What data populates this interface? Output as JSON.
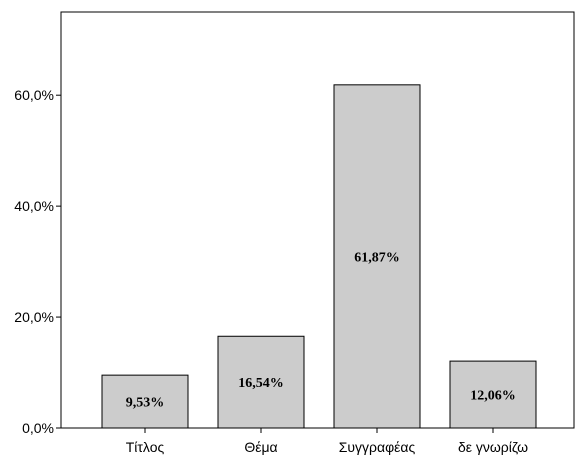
{
  "chart_data": {
    "type": "bar",
    "categories": [
      "Τίτλος",
      "Θέμα",
      "Συγγραφέας",
      "δε γνωρίζω"
    ],
    "values": [
      9.53,
      16.54,
      61.87,
      12.06
    ],
    "data_labels": [
      "9,53%",
      "16,54%",
      "61,87%",
      "12,06%"
    ],
    "title": "",
    "xlabel": "",
    "ylabel": "",
    "ylim": [
      0,
      75
    ],
    "yticks": [
      0,
      20,
      40,
      60
    ],
    "ytick_labels": [
      "0,0%",
      "20,0%",
      "40,0%",
      "60,0%"
    ],
    "grid": false,
    "bar_color": "#cccccc",
    "bar_edge_color": "#000000"
  }
}
